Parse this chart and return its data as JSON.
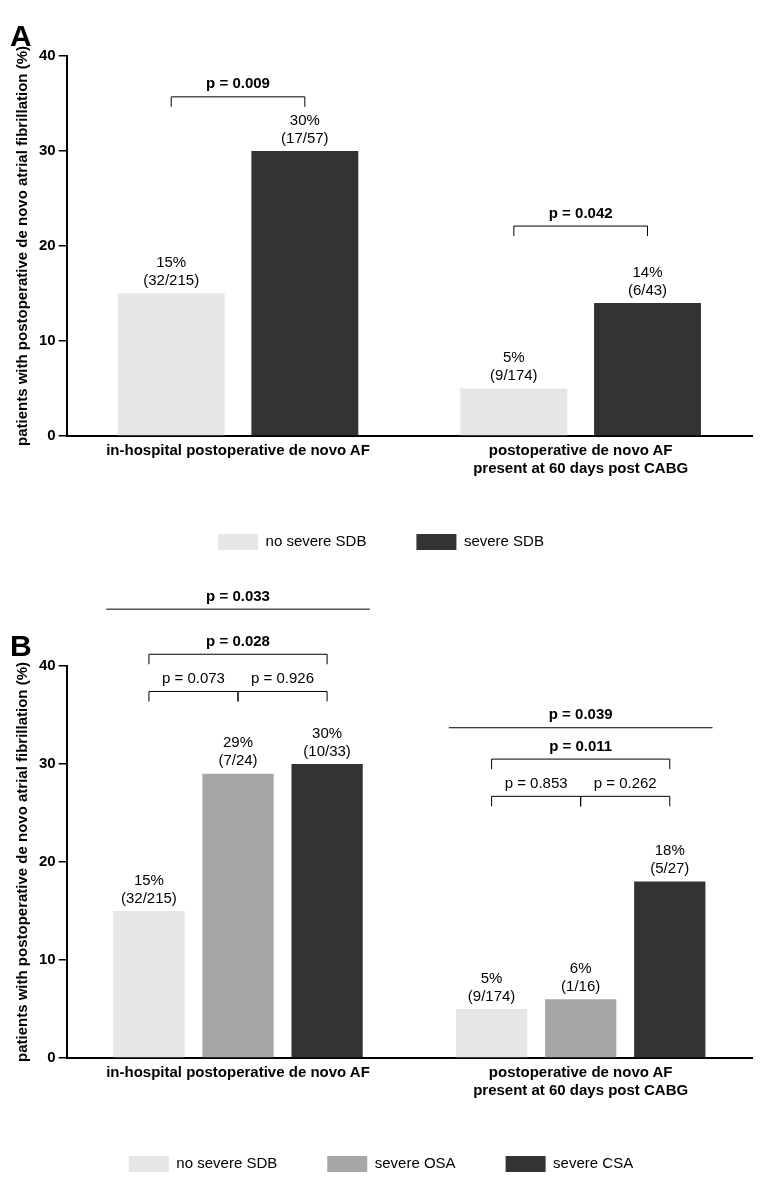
{
  "chart_data": [
    {
      "type": "bar",
      "title": "A",
      "ylabel": "patients with postoperative de novo atrial fibrillation (%)",
      "categories": [
        "in-hospital postoperative de novo AF",
        "postoperative de novo AF\npresent at 60 days post CABG"
      ],
      "series": [
        {
          "name": "no severe SDB",
          "color": "#e6e6e6",
          "values": [
            15,
            5
          ],
          "value_labels": [
            "15%\n(32/215)",
            "5%\n(9/174)"
          ]
        },
        {
          "name": "severe SDB",
          "color": "#333333",
          "values": [
            30,
            14
          ],
          "value_labels": [
            "30%\n(17/57)",
            "14%\n(6/43)"
          ]
        }
      ],
      "ylim": [
        0,
        40
      ],
      "yticks": [
        0,
        10,
        20,
        30,
        40
      ],
      "grid": false,
      "legend": "bottom",
      "annotations": [
        "p = 0.009",
        "p = 0.042"
      ]
    },
    {
      "type": "bar",
      "title": "B",
      "ylabel": "patients with postoperative de novo atrial fibrillation (%)",
      "categories": [
        "in-hospital postoperative de novo AF",
        "postoperative de novo AF\npresent at 60 days post CABG"
      ],
      "series": [
        {
          "name": "no severe SDB",
          "color": "#e6e6e6",
          "values": [
            15,
            5
          ],
          "value_labels": [
            "15%\n(32/215)",
            "5%\n(9/174)"
          ]
        },
        {
          "name": "severe OSA",
          "color": "#a6a6a6",
          "values": [
            29,
            6
          ],
          "value_labels": [
            "29%\n(7/24)",
            "6%\n(1/16)"
          ]
        },
        {
          "name": "severe CSA",
          "color": "#333333",
          "values": [
            30,
            18
          ],
          "value_labels": [
            "30%\n(10/33)",
            "18%\n(5/27)"
          ]
        }
      ],
      "ylim": [
        0,
        40
      ],
      "yticks": [
        0,
        10,
        20,
        30,
        40
      ],
      "grid": false,
      "legend": "bottom",
      "annotations": [
        "p = 0.033",
        "p = 0.028",
        "p = 0.073",
        "p = 0.926",
        "p = 0.039",
        "p = 0.011",
        "p = 0.853",
        "p = 0.262"
      ]
    }
  ]
}
